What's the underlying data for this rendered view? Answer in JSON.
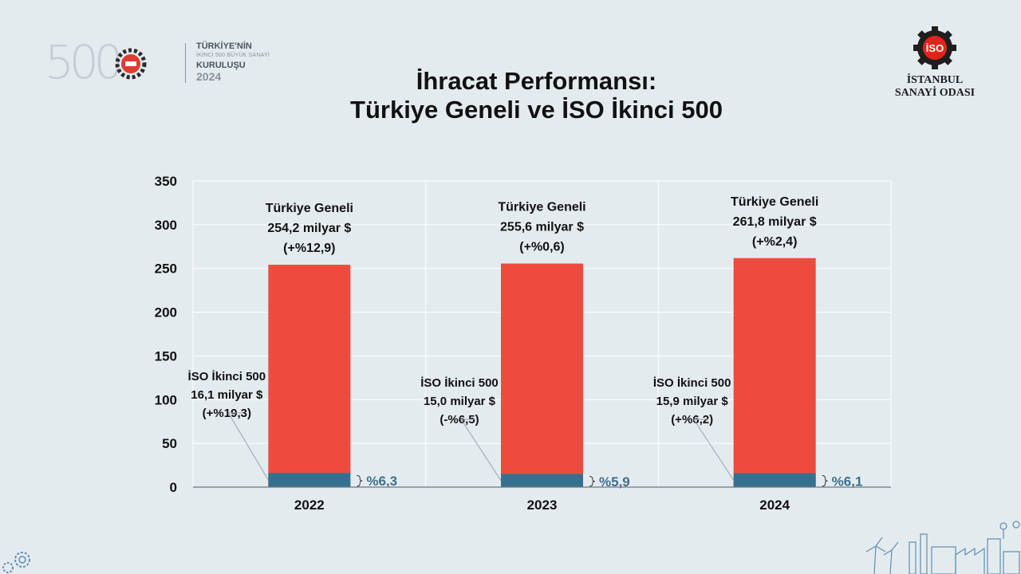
{
  "header": {
    "badge_number": "500",
    "badge_line1": "TÜRKİYE'NİN",
    "badge_line2": "İKİNCİ 500 BÜYÜK SANAYİ",
    "badge_line3": "KURULUŞU",
    "badge_year": "2024",
    "title_line1": "İhracat Performansı:",
    "title_line2": "Türkiye Geneli ve İSO İkinci 500",
    "org_logo_text": "İSO",
    "org_line1": "İSTANBUL",
    "org_line2": "SANAYİ ODASI"
  },
  "chart_data": {
    "type": "bar",
    "stacked": true,
    "categories": [
      "2022",
      "2023",
      "2024"
    ],
    "ylim": [
      0,
      350
    ],
    "yticks": [
      0,
      50,
      100,
      150,
      200,
      250,
      300,
      350
    ],
    "grid": true,
    "series": [
      {
        "values": [
          16.1,
          15.0,
          15.9
        ],
        "color": "#34718f"
      },
      {
        "values": [
          254.2,
          255.6,
          261.8
        ],
        "color": "#ee4b3e"
      }
    ],
    "total_labels": [
      [
        "Türkiye Geneli",
        "254,2 milyar $",
        "(+%12,9)"
      ],
      [
        "Türkiye Geneli",
        "255,6 milyar $",
        "(+%0,6)"
      ],
      [
        "Türkiye Geneli",
        "261,8 milyar $",
        "(+%2,4)"
      ]
    ],
    "iso_labels": [
      [
        "İSO İkinci 500",
        "16,1 milyar $",
        "(+%19,3)"
      ],
      [
        "İSO İkinci 500",
        "15,0 milyar $",
        "(-%6,5)"
      ],
      [
        "İSO İkinci 500",
        "15,9 milyar $",
        "(+%6,2)"
      ]
    ],
    "share_labels": [
      "%6,3",
      "%5,9",
      "%6,1"
    ]
  },
  "colors": {
    "background": "#e4ebef",
    "total_bar": "#ee4b3e",
    "iso_bar": "#34718f",
    "share_text": "#3e6f8c"
  }
}
